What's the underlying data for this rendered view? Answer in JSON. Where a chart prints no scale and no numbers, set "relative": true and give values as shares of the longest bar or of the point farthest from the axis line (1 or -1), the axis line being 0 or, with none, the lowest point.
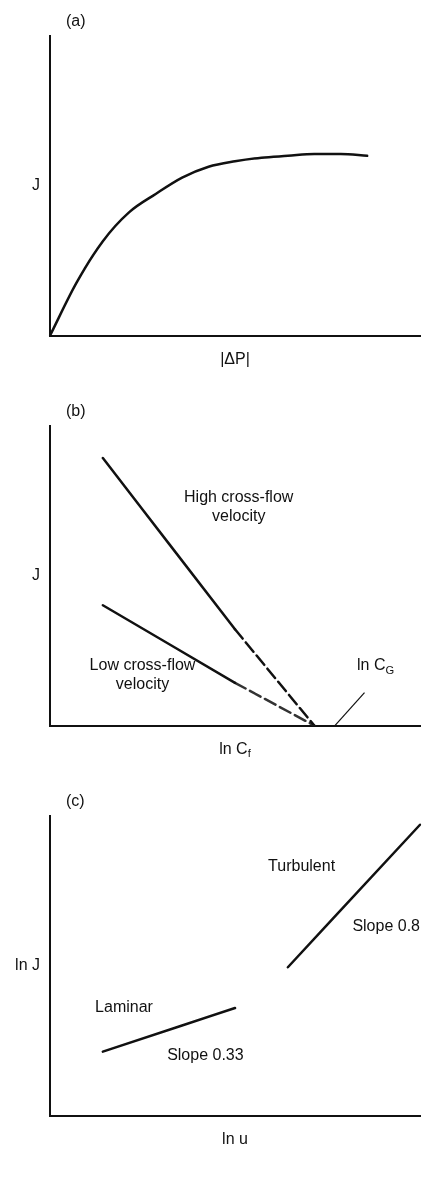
{
  "chart_data": [
    {
      "type": "line",
      "title": "(a)",
      "xlabel": "|ΔP|",
      "ylabel": "J",
      "relative": true,
      "grid": false,
      "legend": false,
      "marker": "none",
      "line_style": "solid",
      "categories": [
        null,
        null,
        null,
        null,
        null,
        null,
        null,
        null,
        null,
        null,
        null,
        null,
        null,
        null,
        null
      ],
      "series": [
        {
          "color": "#111111",
          "values": [
            0,
            0.29,
            0.52,
            0.68,
            0.78,
            0.87,
            0.93,
            0.96,
            0.98,
            0.99,
            1,
            1,
            0.99,
            null,
            null
          ]
        }
      ]
    },
    {
      "type": "line",
      "title": "(b)",
      "xlabel": "ln C$_{f}$",
      "ylabel": "J",
      "relative": true,
      "grid": false,
      "legend": false,
      "marker": "none",
      "line_style": "solid",
      "annotations": [
        "ln C$_{G}$"
      ],
      "categories": [
        null,
        null,
        null,
        null,
        null,
        null,
        null,
        null,
        null,
        null,
        null,
        null,
        null,
        null,
        null
      ],
      "series": [
        {
          "name": "High cross-flow velocity",
          "color": "#111111",
          "values": [
            null,
            null,
            1,
            null,
            null,
            null,
            null,
            0.36,
            null,
            null,
            null,
            null,
            null,
            null,
            null
          ]
        },
        {
          "color": "#111111",
          "line_style": "dashed",
          "values": [
            null,
            null,
            null,
            null,
            null,
            null,
            null,
            0.36,
            null,
            null,
            0,
            null,
            null,
            null,
            null
          ]
        },
        {
          "name": "Low cross-flow velocity",
          "color": "#111111",
          "values": [
            null,
            null,
            0.45,
            null,
            null,
            null,
            null,
            0.16,
            null,
            null,
            null,
            null,
            null,
            null,
            null
          ]
        },
        {
          "color": "#333333",
          "line_style": "dashed",
          "values": [
            null,
            null,
            null,
            null,
            null,
            null,
            null,
            0.16,
            null,
            null,
            0,
            null,
            null,
            null,
            null
          ]
        }
      ]
    },
    {
      "type": "line",
      "title": "(c)",
      "xlabel": "ln u",
      "ylabel": "ln J",
      "relative": true,
      "grid": false,
      "legend": false,
      "marker": "none",
      "line_style": "solid",
      "annotations": [
        "Slope 0.33",
        "Slope 0.8"
      ],
      "categories": [
        null,
        null,
        null,
        null,
        null,
        null,
        null,
        null,
        null,
        null,
        null,
        null,
        null,
        null,
        null
      ],
      "series": [
        {
          "name": "Laminar",
          "color": "#111111",
          "values": [
            null,
            null,
            0.22,
            null,
            null,
            null,
            null,
            0.37,
            null,
            null,
            null,
            null,
            null,
            null,
            null
          ]
        },
        {
          "name": "Turbulent",
          "color": "#111111",
          "values": [
            null,
            null,
            null,
            null,
            null,
            null,
            null,
            null,
            null,
            0.51,
            null,
            null,
            null,
            null,
            1
          ]
        }
      ]
    }
  ]
}
